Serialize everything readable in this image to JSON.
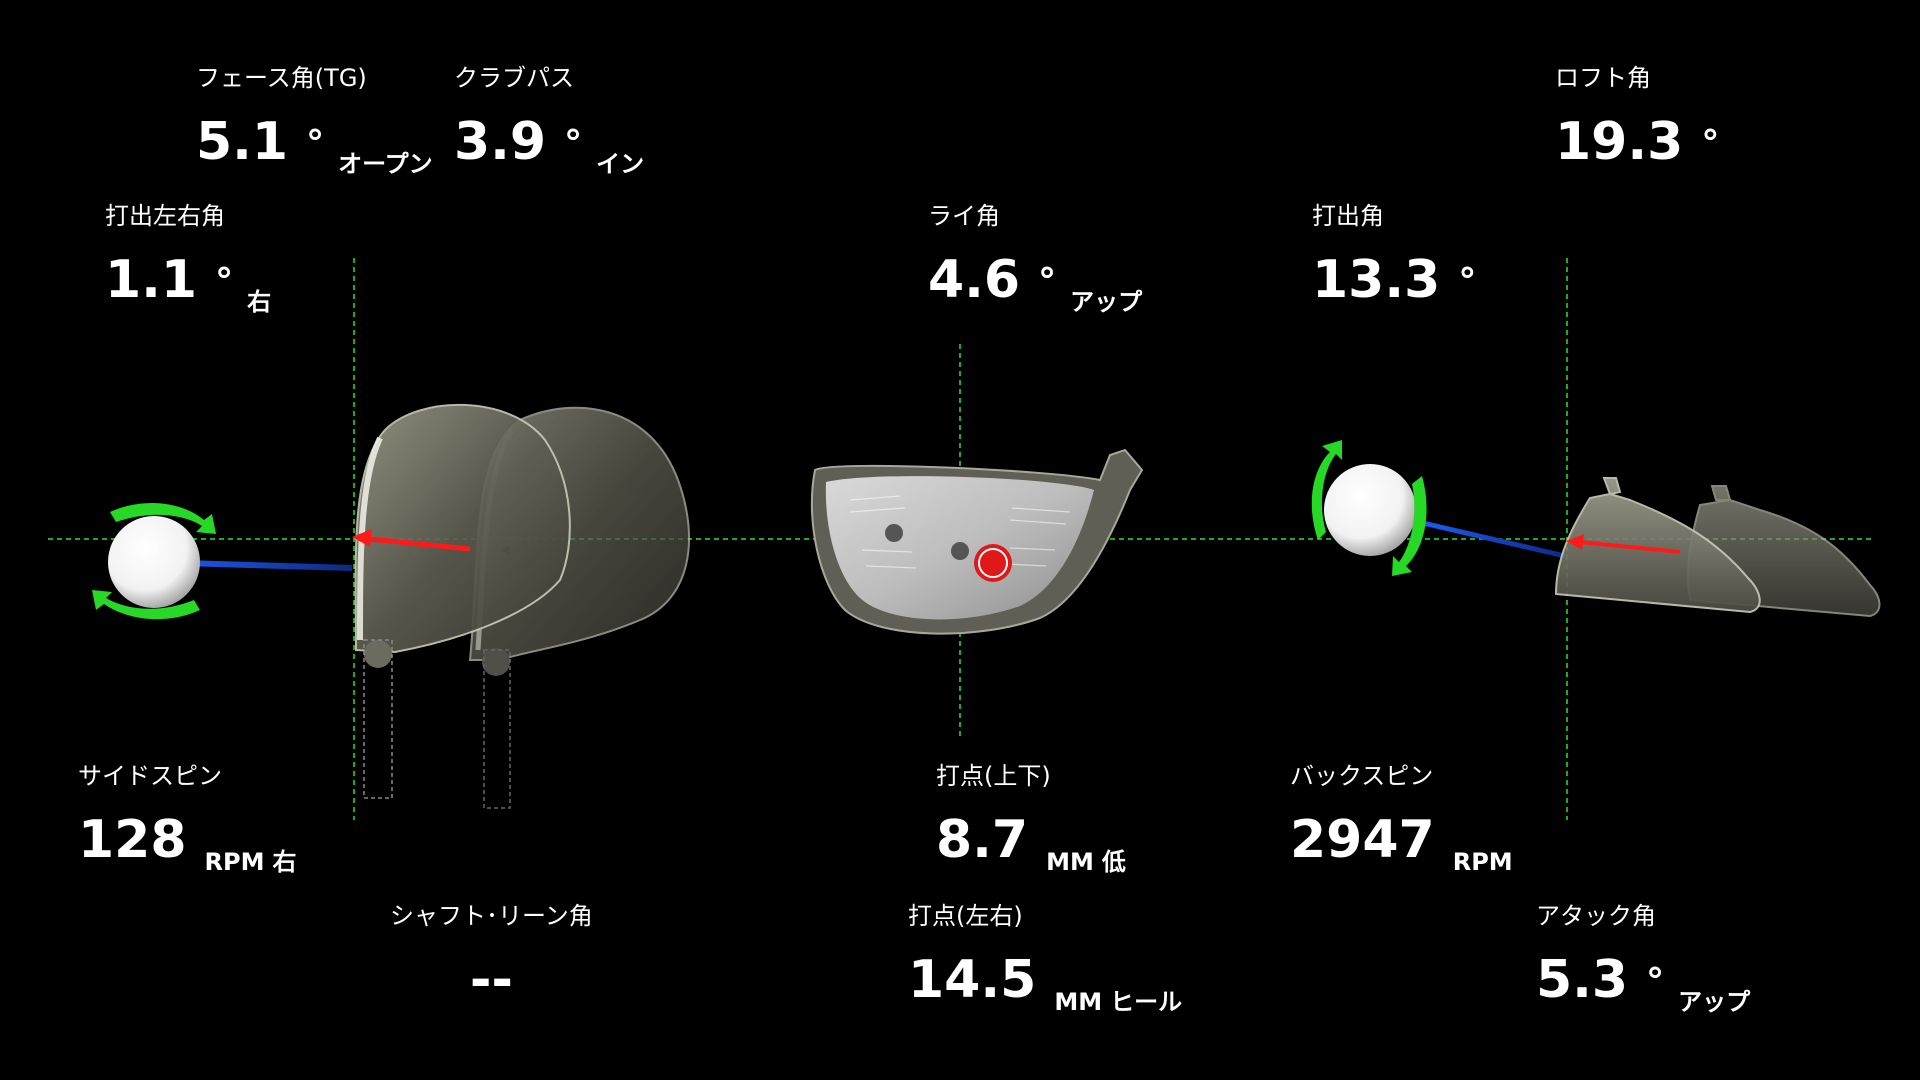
{
  "metrics": {
    "face_angle": {
      "label": "フェース角(TG)",
      "value": "5.1",
      "unit": "°",
      "suffix": "オープン"
    },
    "club_path": {
      "label": "クラブパス",
      "value": "3.9",
      "unit": "°",
      "suffix": "イン"
    },
    "loft_angle": {
      "label": "ロフト角",
      "value": "19.3",
      "unit": "°",
      "suffix": ""
    },
    "launch_direction": {
      "label": "打出左右角",
      "value": "1.1",
      "unit": "°",
      "suffix": "右"
    },
    "lie_angle": {
      "label": "ライ角",
      "value": "4.6",
      "unit": "°",
      "suffix": "アップ"
    },
    "launch_angle": {
      "label": "打出角",
      "value": "13.3",
      "unit": "°",
      "suffix": ""
    },
    "side_spin": {
      "label": "サイドスピン",
      "value": "128",
      "unit": "RPM",
      "suffix": "右"
    },
    "impact_vertical": {
      "label": "打点(上下)",
      "value": "8.7",
      "unit": "MM",
      "suffix": "低"
    },
    "back_spin": {
      "label": "バックスピン",
      "value": "2947",
      "unit": "RPM",
      "suffix": ""
    },
    "shaft_lean": {
      "label": "シャフト･リーン角",
      "value": "--",
      "unit": "",
      "suffix": ""
    },
    "impact_horizontal": {
      "label": "打点(左右)",
      "value": "14.5",
      "unit": "MM",
      "suffix": "ヒール"
    },
    "attack_angle": {
      "label": "アタック角",
      "value": "5.3",
      "unit": "°",
      "suffix": "アップ"
    }
  },
  "colors": {
    "background": "#000000",
    "guide_line": "#2ee02e",
    "club_path_line": "#1f5fff",
    "face_arrow": "#ff1a1a",
    "spin_arrow": "#27d827",
    "impact_marker": "#e01818"
  },
  "icons": {
    "ball": "golf-ball-icon",
    "spin": "spin-arrow-icon",
    "club_top": "club-head-top-view",
    "club_face": "club-face-front-view",
    "club_side": "club-head-side-view"
  }
}
